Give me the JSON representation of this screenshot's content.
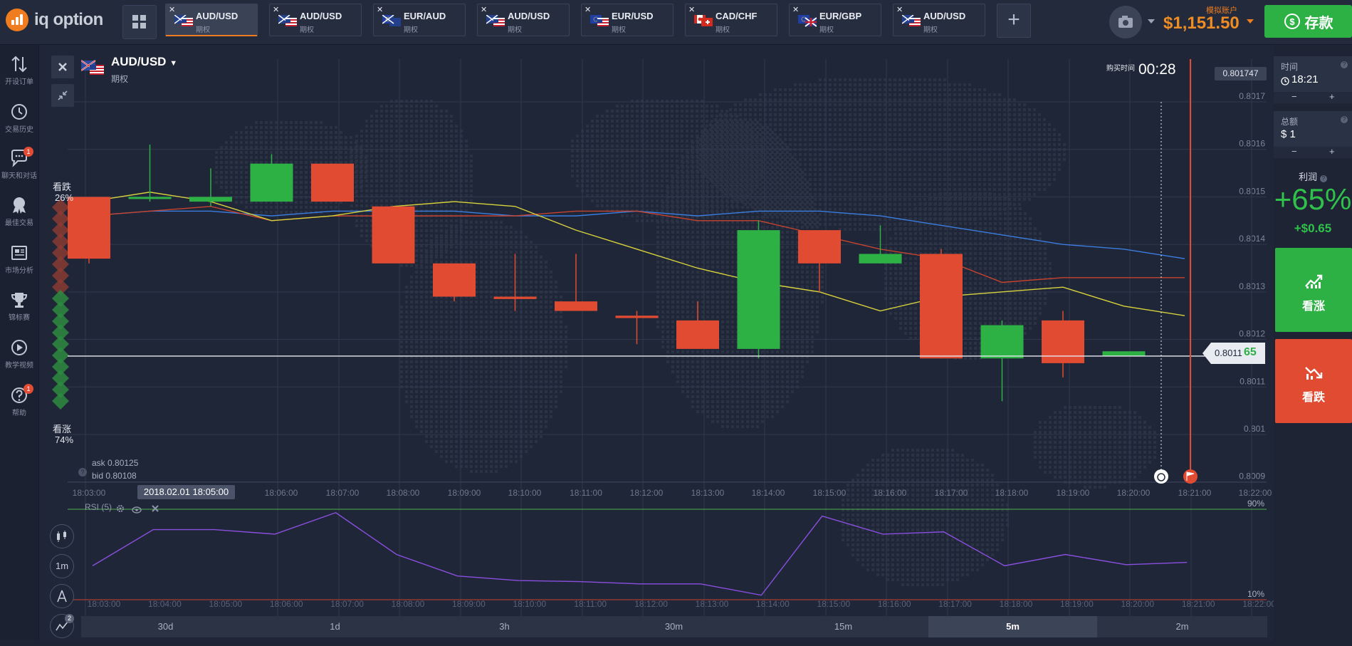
{
  "brand": {
    "name": "iq option"
  },
  "tabs": [
    {
      "pair": "AUD/USD",
      "sub": "期权",
      "flag": "au-us",
      "active": true
    },
    {
      "pair": "AUD/USD",
      "sub": "期权",
      "flag": "au-us"
    },
    {
      "pair": "EUR/AUD",
      "sub": "期权",
      "flag": "eu-au"
    },
    {
      "pair": "AUD/USD",
      "sub": "期权",
      "flag": "au-us"
    },
    {
      "pair": "EUR/USD",
      "sub": "期权",
      "flag": "eu-us"
    },
    {
      "pair": "CAD/CHF",
      "sub": "期权",
      "flag": "ca-ch"
    },
    {
      "pair": "EUR/GBP",
      "sub": "期权",
      "flag": "eu-gb"
    },
    {
      "pair": "AUD/USD",
      "sub": "期权",
      "flag": "au-us"
    }
  ],
  "account": {
    "label": "模拟账户",
    "balance": "$1,151.50",
    "deposit_label": "存款"
  },
  "sidebar": {
    "items": [
      {
        "label": "开设订单",
        "icon": "arrows-updown-icon"
      },
      {
        "label": "交易历史",
        "icon": "history-icon"
      },
      {
        "label": "聊天和对话",
        "icon": "chat-icon",
        "badge": "1"
      },
      {
        "label": "最佳交易",
        "icon": "award-icon"
      },
      {
        "label": "市场分析",
        "icon": "news-icon"
      },
      {
        "label": "锦标赛",
        "icon": "trophy-icon"
      },
      {
        "label": "教学视频",
        "icon": "play-icon"
      },
      {
        "label": "帮助",
        "icon": "help-icon",
        "badge": "1"
      }
    ]
  },
  "asset": {
    "pair": "AUD/USD",
    "type": "期权"
  },
  "sentiment": {
    "down_label": "看跌",
    "down_pct": "26%",
    "up_label": "看涨",
    "up_pct": "74%"
  },
  "quotes": {
    "ask": "ask 0.80125",
    "bid": "bid 0.80108"
  },
  "purchase": {
    "label": "购买时间",
    "countdown": "00:28"
  },
  "current_price": {
    "main": "0.8011",
    "tail": "65"
  },
  "top_price": "0.801747",
  "cursor_date": "2018.02.01 18:05:00",
  "indicator": {
    "name": "RSI (5)",
    "upper": "90%",
    "lower": "10%"
  },
  "tools": {
    "interval": "1m",
    "indicators_badge": "2"
  },
  "timeframes": [
    {
      "label": "30d"
    },
    {
      "label": "1d"
    },
    {
      "label": "3h"
    },
    {
      "label": "30m"
    },
    {
      "label": "15m"
    },
    {
      "label": "5m",
      "selected": true
    },
    {
      "label": "2m"
    }
  ],
  "right_panel": {
    "time_label": "时间",
    "time_value": "18:21",
    "amount_label": "总额",
    "amount_value": "$ 1",
    "minus": "−",
    "plus": "+",
    "profit_label": "利润",
    "profit_pct": "+65%",
    "profit_amount": "+$0.65",
    "call_label": "看涨",
    "put_label": "看跌"
  },
  "colors": {
    "up": "#2db145",
    "down": "#e04b32",
    "accent": "#ef7d1f",
    "ma_blue": "#3b7de0",
    "ma_red": "#c8432f",
    "ma_yellow": "#d8d23c",
    "rsi": "#8a4fe0"
  },
  "chart_data": {
    "type": "candlestick",
    "price_axis_ticks": [
      "0.8017",
      "0.8016",
      "0.8015",
      "0.8014",
      "0.8013",
      "0.8012",
      "0.8011",
      "0.801",
      "0.8009"
    ],
    "time_axis_ticks": [
      "18:03:00",
      "18:06:00",
      "18:07:00",
      "18:08:00",
      "18:09:00",
      "18:10:00",
      "18:11:00",
      "18:12:00",
      "18:13:00",
      "18:14:00",
      "18:15:00",
      "18:16:00",
      "18:17:00",
      "18:18:00",
      "18:19:00",
      "18:20:00",
      "18:21:00",
      "18:22:00"
    ],
    "rsi_time_ticks": [
      "18:03:00",
      "18:04:00",
      "18:05:00",
      "18:06:00",
      "18:07:00",
      "18:08:00",
      "18:09:00",
      "18:10:00",
      "18:11:00",
      "18:12:00",
      "18:13:00",
      "18:14:00",
      "18:15:00",
      "18:16:00",
      "18:17:00",
      "18:18:00",
      "18:19:00",
      "18:20:00",
      "18:21:00",
      "18:22:00"
    ],
    "candles": [
      {
        "t": 0,
        "o": 0.8015,
        "c": 0.80137,
        "h": 0.8015,
        "l": 0.80136
      },
      {
        "t": 1,
        "o": 0.8015,
        "c": 0.8015,
        "h": 0.80161,
        "l": 0.80149
      },
      {
        "t": 2,
        "o": 0.80149,
        "c": 0.8015,
        "h": 0.80156,
        "l": 0.80148
      },
      {
        "t": 3,
        "o": 0.80149,
        "c": 0.80157,
        "h": 0.80159,
        "l": 0.80149
      },
      {
        "t": 4,
        "o": 0.80157,
        "c": 0.80149,
        "h": 0.80157,
        "l": 0.80149
      },
      {
        "t": 5,
        "o": 0.80148,
        "c": 0.80136,
        "h": 0.80148,
        "l": 0.80136
      },
      {
        "t": 6,
        "o": 0.80136,
        "c": 0.80129,
        "h": 0.80136,
        "l": 0.80128
      },
      {
        "t": 7,
        "o": 0.80129,
        "c": 0.801285,
        "h": 0.80138,
        "l": 0.80126
      },
      {
        "t": 8,
        "o": 0.80128,
        "c": 0.80126,
        "h": 0.80138,
        "l": 0.80126
      },
      {
        "t": 9,
        "o": 0.80125,
        "c": 0.801245,
        "h": 0.80126,
        "l": 0.80119
      },
      {
        "t": 10,
        "o": 0.80124,
        "c": 0.80118,
        "h": 0.80128,
        "l": 0.80118
      },
      {
        "t": 11,
        "o": 0.80118,
        "c": 0.80143,
        "h": 0.80145,
        "l": 0.80116
      },
      {
        "t": 12,
        "o": 0.80143,
        "c": 0.80136,
        "h": 0.80143,
        "l": 0.8013
      },
      {
        "t": 13,
        "o": 0.80136,
        "c": 0.80138,
        "h": 0.80144,
        "l": 0.80136
      },
      {
        "t": 14,
        "o": 0.80138,
        "c": 0.80116,
        "h": 0.80139,
        "l": 0.80116
      },
      {
        "t": 15,
        "o": 0.80116,
        "c": 0.80123,
        "h": 0.80124,
        "l": 0.80107
      },
      {
        "t": 16,
        "o": 0.80124,
        "c": 0.80115,
        "h": 0.80126,
        "l": 0.80112
      },
      {
        "t": 17,
        "o": 0.801165,
        "c": 0.801175,
        "h": 0.801175,
        "l": 0.801165
      }
    ],
    "ma_blue": [
      0.80146,
      0.80147,
      0.80147,
      0.80146,
      0.80147,
      0.80147,
      0.80147,
      0.80146,
      0.80146,
      0.80147,
      0.80146,
      0.80147,
      0.80147,
      0.80146,
      0.80144,
      0.80142,
      0.8014,
      0.80139,
      0.80137
    ],
    "ma_red": [
      0.80146,
      0.80147,
      0.80148,
      0.80145,
      0.80146,
      0.80146,
      0.80146,
      0.80146,
      0.80147,
      0.80147,
      0.80145,
      0.80145,
      0.80142,
      0.80139,
      0.80137,
      0.80132,
      0.80133,
      0.80133,
      0.80133
    ],
    "ma_yellow": [
      0.80149,
      0.80151,
      0.80149,
      0.80145,
      0.80146,
      0.80148,
      0.80149,
      0.80148,
      0.80143,
      0.80139,
      0.80135,
      0.80132,
      0.8013,
      0.80126,
      0.80129,
      0.8013,
      0.80131,
      0.80127,
      0.80125
    ],
    "rsi": [
      40,
      72,
      72,
      68,
      87,
      50,
      31,
      27,
      26,
      24,
      24,
      14,
      84,
      68,
      70,
      40,
      50,
      41,
      43
    ]
  }
}
